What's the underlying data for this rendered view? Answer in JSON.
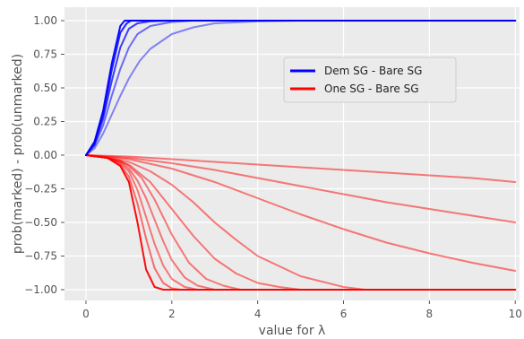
{
  "chart_data": {
    "type": "line",
    "xlabel": "value for λ",
    "ylabel": "prob(marked) - prob(unmarked)",
    "xlim": [
      -0.5,
      10.1
    ],
    "ylim": [
      -1.08,
      1.1
    ],
    "grid": true,
    "background": "#EBEBEB",
    "grid_color": "#FFFFFF",
    "legend_position": "upper-right-center",
    "x_ticks": [
      0,
      2,
      4,
      6,
      8,
      10
    ],
    "x_tick_labels": [
      "0",
      "2",
      "4",
      "6",
      "8",
      "10"
    ],
    "y_ticks": [
      1.0,
      0.75,
      0.5,
      0.25,
      0.0,
      -0.25,
      -0.5,
      -0.75,
      -1.0
    ],
    "y_tick_labels": [
      "1.00",
      "0.75",
      "0.50",
      "0.25",
      "0.00",
      "−0.25",
      "−0.50",
      "−0.75",
      "−1.00"
    ],
    "legend": [
      {
        "label": "Dem SG - Bare SG",
        "color": "#0000FF"
      },
      {
        "label": "One SG - Bare SG",
        "color": "#FF0000"
      }
    ],
    "series": [
      {
        "group": "Dem SG - Bare SG",
        "color": "#0000FF",
        "opacity": 0.95,
        "x": [
          0,
          0.2,
          0.4,
          0.6,
          0.8,
          0.9,
          1.0,
          1.5,
          10
        ],
        "y": [
          0.0,
          0.1,
          0.33,
          0.68,
          0.96,
          1.0,
          1.0,
          1.0,
          1.0
        ]
      },
      {
        "group": "Dem SG - Bare SG",
        "color": "#0000FF",
        "opacity": 0.85,
        "x": [
          0,
          0.2,
          0.4,
          0.6,
          0.8,
          0.95,
          1.05,
          1.5,
          10
        ],
        "y": [
          0.0,
          0.09,
          0.3,
          0.63,
          0.91,
          0.98,
          1.0,
          1.0,
          1.0
        ]
      },
      {
        "group": "Dem SG - Bare SG",
        "color": "#0000FF",
        "opacity": 0.75,
        "x": [
          0,
          0.2,
          0.4,
          0.6,
          0.8,
          1.0,
          1.2,
          1.5,
          2.0,
          10
        ],
        "y": [
          0.0,
          0.08,
          0.27,
          0.55,
          0.8,
          0.94,
          0.98,
          0.995,
          1.0,
          1.0
        ]
      },
      {
        "group": "Dem SG - Bare SG",
        "color": "#0000FF",
        "opacity": 0.55,
        "x": [
          0,
          0.2,
          0.4,
          0.6,
          0.8,
          1.0,
          1.2,
          1.5,
          2.0,
          2.5,
          3.0,
          10
        ],
        "y": [
          0.0,
          0.07,
          0.22,
          0.44,
          0.64,
          0.8,
          0.9,
          0.96,
          0.99,
          1.0,
          1.0,
          1.0
        ]
      },
      {
        "group": "Dem SG - Bare SG",
        "color": "#0000FF",
        "opacity": 0.45,
        "x": [
          0,
          0.2,
          0.4,
          0.6,
          0.8,
          1.0,
          1.25,
          1.5,
          2.0,
          2.5,
          3.0,
          4.0,
          5.0,
          10
        ],
        "y": [
          0.0,
          0.05,
          0.16,
          0.3,
          0.44,
          0.57,
          0.7,
          0.79,
          0.9,
          0.95,
          0.98,
          0.995,
          1.0,
          1.0
        ]
      },
      {
        "group": "One SG - Bare SG",
        "color": "#FF0000",
        "opacity": 0.95,
        "x": [
          0,
          0.5,
          0.8,
          1.0,
          1.2,
          1.4,
          1.6,
          1.8,
          2.0,
          10
        ],
        "y": [
          0.0,
          -0.02,
          -0.08,
          -0.2,
          -0.5,
          -0.85,
          -0.98,
          -1.0,
          -1.0,
          -1.0
        ]
      },
      {
        "group": "One SG - Bare SG",
        "color": "#FF0000",
        "opacity": 0.55,
        "x": [
          0,
          0.5,
          0.8,
          1.0,
          1.2,
          1.4,
          1.6,
          1.8,
          2.0,
          2.2,
          10
        ],
        "y": [
          0.0,
          -0.02,
          -0.07,
          -0.16,
          -0.36,
          -0.62,
          -0.84,
          -0.95,
          -0.99,
          -1.0,
          -1.0
        ]
      },
      {
        "group": "One SG - Bare SG",
        "color": "#FF0000",
        "opacity": 0.5,
        "x": [
          0,
          0.5,
          0.8,
          1.0,
          1.2,
          1.4,
          1.6,
          1.8,
          2.0,
          2.3,
          2.6,
          10
        ],
        "y": [
          0.0,
          -0.02,
          -0.06,
          -0.12,
          -0.26,
          -0.46,
          -0.66,
          -0.82,
          -0.92,
          -0.98,
          -1.0,
          -1.0
        ]
      },
      {
        "group": "One SG - Bare SG",
        "color": "#FF0000",
        "opacity": 0.5,
        "x": [
          0,
          0.5,
          0.8,
          1.0,
          1.2,
          1.4,
          1.6,
          1.8,
          2.0,
          2.3,
          2.6,
          3.0,
          10
        ],
        "y": [
          0.0,
          -0.02,
          -0.05,
          -0.1,
          -0.19,
          -0.32,
          -0.48,
          -0.64,
          -0.78,
          -0.91,
          -0.97,
          -1.0,
          -1.0
        ]
      },
      {
        "group": "One SG - Bare SG",
        "color": "#FF0000",
        "opacity": 0.5,
        "x": [
          0,
          0.5,
          0.8,
          1.0,
          1.3,
          1.6,
          2.0,
          2.4,
          2.8,
          3.2,
          3.6,
          10
        ],
        "y": [
          0.0,
          -0.02,
          -0.04,
          -0.08,
          -0.17,
          -0.33,
          -0.59,
          -0.8,
          -0.92,
          -0.97,
          -1.0,
          -1.0
        ]
      },
      {
        "group": "One SG - Bare SG",
        "color": "#FF0000",
        "opacity": 0.5,
        "x": [
          0,
          0.5,
          1.0,
          1.5,
          2.0,
          2.5,
          3.0,
          3.5,
          4.0,
          4.5,
          5.0,
          10
        ],
        "y": [
          0.0,
          -0.02,
          -0.07,
          -0.2,
          -0.4,
          -0.6,
          -0.77,
          -0.88,
          -0.95,
          -0.98,
          -1.0,
          -1.0
        ]
      },
      {
        "group": "One SG - Bare SG",
        "color": "#FF0000",
        "opacity": 0.5,
        "x": [
          0,
          0.5,
          1.0,
          1.5,
          2.0,
          2.5,
          3.0,
          3.5,
          4.0,
          5.0,
          6.0,
          6.5,
          10
        ],
        "y": [
          0.0,
          -0.02,
          -0.05,
          -0.12,
          -0.22,
          -0.35,
          -0.5,
          -0.63,
          -0.75,
          -0.9,
          -0.98,
          -1.0,
          -1.0
        ]
      },
      {
        "group": "One SG - Bare SG",
        "color": "#FF0000",
        "opacity": 0.5,
        "x": [
          0,
          1.0,
          2.0,
          3.0,
          4.0,
          5.0,
          6.0,
          7.0,
          8.0,
          9.0,
          10.0
        ],
        "y": [
          0.0,
          -0.03,
          -0.1,
          -0.2,
          -0.32,
          -0.44,
          -0.55,
          -0.65,
          -0.73,
          -0.8,
          -0.86
        ]
      },
      {
        "group": "One SG - Bare SG",
        "color": "#FF0000",
        "opacity": 0.5,
        "x": [
          0,
          1.0,
          2.0,
          3.0,
          4.0,
          5.0,
          6.0,
          7.0,
          8.0,
          9.0,
          10.0
        ],
        "y": [
          0.0,
          -0.02,
          -0.06,
          -0.11,
          -0.17,
          -0.23,
          -0.29,
          -0.35,
          -0.4,
          -0.45,
          -0.5
        ]
      },
      {
        "group": "One SG - Bare SG",
        "color": "#FF0000",
        "opacity": 0.5,
        "x": [
          0,
          1.0,
          2.0,
          3.0,
          4.0,
          5.0,
          6.0,
          7.0,
          8.0,
          9.0,
          10.0
        ],
        "y": [
          0.0,
          -0.01,
          -0.03,
          -0.05,
          -0.07,
          -0.09,
          -0.11,
          -0.13,
          -0.15,
          -0.17,
          -0.2
        ]
      }
    ]
  }
}
